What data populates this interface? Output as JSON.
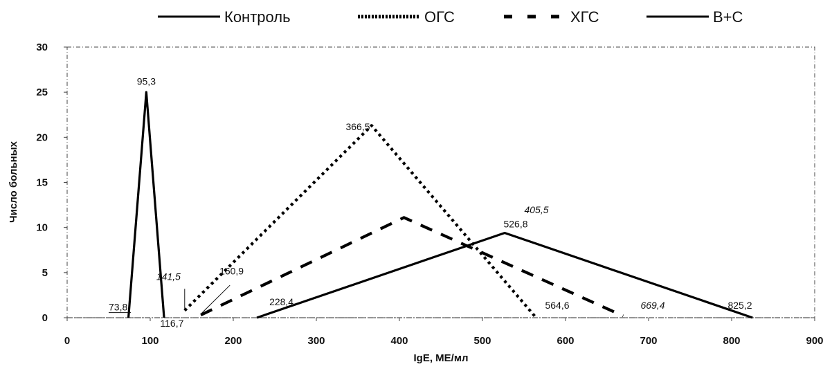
{
  "chart_data": {
    "type": "line",
    "xlabel": "IgE, МЕ/мл",
    "ylabel": "Число больных",
    "xlim": [
      0,
      900
    ],
    "ylim": [
      0,
      30
    ],
    "xticks": [
      "0",
      "100",
      "200",
      "300",
      "400",
      "500",
      "600",
      "700",
      "800",
      "900"
    ],
    "yticks": [
      "0",
      "5",
      "10",
      "15",
      "20",
      "25",
      "30"
    ],
    "grid": false,
    "legend_position": "top",
    "series": [
      {
        "name": "Контроль",
        "style": "solid",
        "color": "#000000",
        "x": [
          73.8,
          95.3,
          116.7
        ],
        "y": [
          0,
          25,
          0
        ]
      },
      {
        "name": "ОГС",
        "style": "dotted",
        "color": "#000000",
        "x": [
          141.5,
          366.5,
          564.6
        ],
        "y": [
          0.8,
          21.3,
          0
        ]
      },
      {
        "name": "ХГС",
        "style": "dashed",
        "color": "#000000",
        "x": [
          160.9,
          405.5,
          669.4
        ],
        "y": [
          0.3,
          11.1,
          0.2
        ]
      },
      {
        "name": "В+С",
        "style": "solid",
        "color": "#000000",
        "x": [
          228.4,
          526.8,
          825.2
        ],
        "y": [
          0,
          9.4,
          0
        ]
      }
    ],
    "annotations": [
      {
        "text": "95,3",
        "x": 95.3,
        "y": 25.8,
        "italic": false,
        "anchor": "middle"
      },
      {
        "text": "73,8",
        "x": 50,
        "y": 0.8,
        "italic": false,
        "anchor": "start",
        "underline": true
      },
      {
        "text": "116,7",
        "x": 112,
        "y": -1.0,
        "italic": false,
        "anchor": "start"
      },
      {
        "text": "141,5",
        "x": 122,
        "y": 4.2,
        "italic": true,
        "anchor": "middle"
      },
      {
        "text": "160,9",
        "x": 198,
        "y": 4.8,
        "italic": false,
        "anchor": "middle"
      },
      {
        "text": "228,4",
        "x": 258,
        "y": 1.4,
        "italic": false,
        "anchor": "middle"
      },
      {
        "text": "366,5",
        "x": 350,
        "y": 20.8,
        "italic": false,
        "anchor": "middle"
      },
      {
        "text": "405,5",
        "x": 565,
        "y": 11.6,
        "italic": true,
        "anchor": "middle"
      },
      {
        "text": "526,8",
        "x": 540,
        "y": 10.0,
        "italic": false,
        "anchor": "middle"
      },
      {
        "text": "564,6",
        "x": 590,
        "y": 1.0,
        "italic": false,
        "anchor": "middle"
      },
      {
        "text": "669,4",
        "x": 705,
        "y": 1.0,
        "italic": true,
        "anchor": "middle"
      },
      {
        "text": "825,2",
        "x": 810,
        "y": 1.0,
        "italic": false,
        "anchor": "middle"
      }
    ]
  }
}
